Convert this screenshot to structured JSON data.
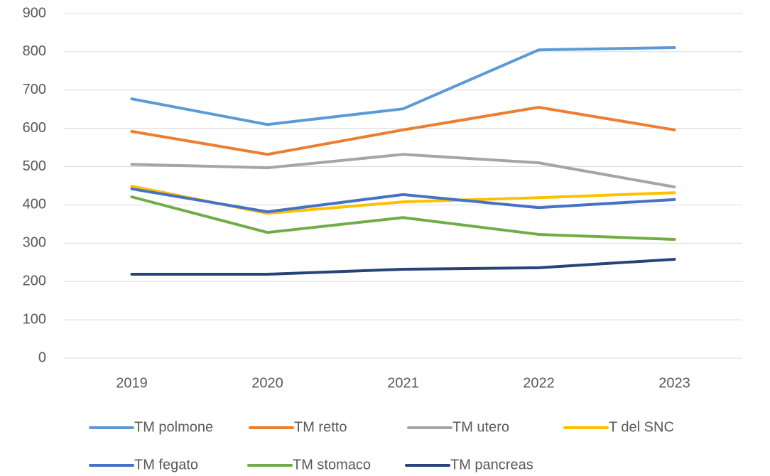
{
  "chart_data": {
    "type": "line",
    "categories": [
      "2019",
      "2020",
      "2021",
      "2022",
      "2023"
    ],
    "series": [
      {
        "name": "TM polmone",
        "color": "#5b9bd5",
        "values": [
          677,
          610,
          651,
          805,
          811
        ]
      },
      {
        "name": "TM retto",
        "color": "#ed7d31",
        "values": [
          592,
          532,
          596,
          655,
          596
        ]
      },
      {
        "name": "TM utero",
        "color": "#a5a5a5",
        "values": [
          506,
          497,
          532,
          510,
          447
        ]
      },
      {
        "name": "T del SNC",
        "color": "#ffc000",
        "values": [
          449,
          378,
          408,
          419,
          432
        ]
      },
      {
        "name": "TM fegato",
        "color": "#4472c4",
        "values": [
          442,
          382,
          427,
          393,
          414
        ]
      },
      {
        "name": "TM stomaco",
        "color": "#70ad47",
        "values": [
          421,
          328,
          367,
          323,
          310
        ]
      },
      {
        "name": "TM pancreas",
        "color": "#264478",
        "values": [
          219,
          219,
          232,
          236,
          258
        ]
      }
    ],
    "ylim": [
      0,
      900
    ],
    "yticks": [
      0,
      100,
      200,
      300,
      400,
      500,
      600,
      700,
      800,
      900
    ],
    "grid": true,
    "legend": "bottom"
  }
}
